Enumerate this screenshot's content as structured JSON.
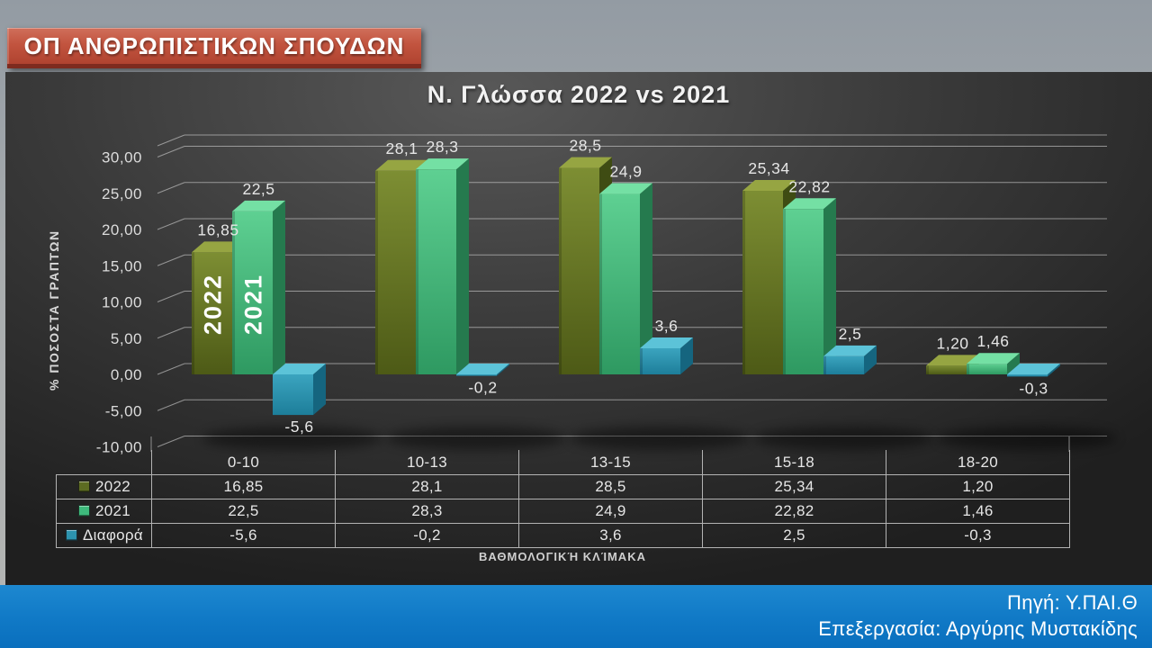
{
  "banner": {
    "label": "ΟΠ ΑΝΘΡΩΠΙΣΤΙΚΩΝ ΣΠΟΥΔΩΝ"
  },
  "chart_data": {
    "type": "bar",
    "style": "3d-column",
    "title": "Ν. Γλώσσα 2022 vs 2021",
    "xlabel": "ΒΑΘΜΟΛΟΓΙΚΉ ΚΛΊΜΑΚΑ",
    "ylabel": "% ΠΟΣΟΣΤΑ ΓΡΑΠΤΩΝ",
    "categories": [
      "0-10",
      "10-13",
      "13-15",
      "15-18",
      "18-20"
    ],
    "series": [
      {
        "name": "2022",
        "values": [
          16.85,
          28.1,
          28.5,
          25.34,
          1.2
        ],
        "labels": [
          "16,85",
          "28,1",
          "28,5",
          "25,34",
          "1,20"
        ],
        "colors": {
          "front_top": "#7d8e33",
          "front_bottom": "#4d5a16",
          "top": "#96a542",
          "side": "#3f4c13",
          "swatch": "#5d6c22"
        }
      },
      {
        "name": "2021",
        "values": [
          22.5,
          28.3,
          24.9,
          22.82,
          1.46
        ],
        "labels": [
          "22,5",
          "28,3",
          "24,9",
          "22,82",
          "1,46"
        ],
        "colors": {
          "front_top": "#5ed092",
          "front_bottom": "#2e9961",
          "top": "#74e0a4",
          "side": "#257a4e",
          "swatch": "#3eba7c"
        }
      },
      {
        "name": "Διαφορά",
        "values": [
          -5.6,
          -0.2,
          3.6,
          2.5,
          -0.3
        ],
        "labels": [
          "-5,6",
          "-0,2",
          "3,6",
          "2,5",
          "-0,3"
        ],
        "colors": {
          "front_top": "#3ba4bf",
          "front_bottom": "#1d7e9a",
          "top": "#5cc3d8",
          "side": "#15657f",
          "swatch": "#2d93ae"
        }
      }
    ],
    "y_ticks": [
      {
        "value": 30,
        "label": "30,00"
      },
      {
        "value": 25,
        "label": "25,00"
      },
      {
        "value": 20,
        "label": "20,00"
      },
      {
        "value": 15,
        "label": "15,00"
      },
      {
        "value": 10,
        "label": "10,00"
      },
      {
        "value": 5,
        "label": "5,00"
      },
      {
        "value": 0,
        "label": "0,00"
      },
      {
        "value": -5,
        "label": "-5,00"
      },
      {
        "value": -10,
        "label": "-10,00"
      }
    ],
    "ylim": [
      -10,
      30
    ],
    "grid": true,
    "legend_position": "table-rows-left",
    "in_bar_labels": [
      "2022",
      "2021"
    ]
  },
  "footer": {
    "line1": "Πηγή: Υ.ΠΑΙ.Θ",
    "line2": "Επεξεργασία: Αργύρης Μυστακίδης"
  }
}
